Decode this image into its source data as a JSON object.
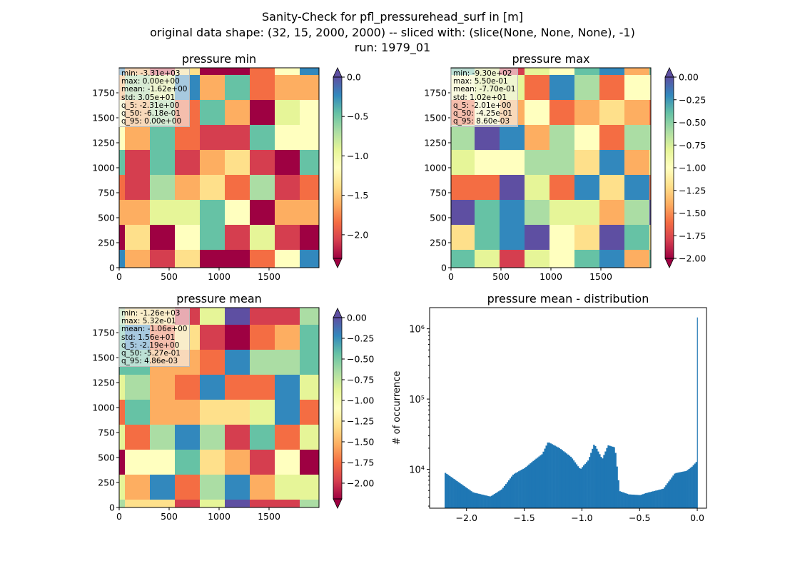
{
  "figure": {
    "title_lines": [
      "Sanity-Check for pfl_pressurehead_surf in [m]",
      "original data shape: (32, 15, 2000, 2000) -- sliced with: (slice(None, None, None), -1)",
      "run: 1979_01"
    ]
  },
  "colormap": {
    "name": "Spectral",
    "stops": [
      "#9e0142",
      "#d53e4f",
      "#f46d43",
      "#fdae61",
      "#fee08b",
      "#ffffbf",
      "#e6f598",
      "#abdda4",
      "#66c2a5",
      "#3288bd",
      "#5e4fa2"
    ]
  },
  "chart_data": [
    {
      "type": "heatmap",
      "title": "pressure min",
      "x_ticks": [
        "0",
        "500",
        "1000",
        "1500"
      ],
      "y_ticks": [
        "0",
        "250",
        "500",
        "750",
        "1000",
        "1250",
        "1500",
        "1750"
      ],
      "xlim": [
        0,
        2000
      ],
      "ylim": [
        0,
        2000
      ],
      "colorbar": {
        "range": [
          -2.3,
          0.0
        ],
        "ticks": [
          "0.0",
          "-0.5",
          "-1.0",
          "-1.5",
          "-2.0"
        ],
        "extend": "both"
      },
      "stats": [
        "min: -3.31e+03",
        "max: 0.00e+00",
        "mean: -1.62e+00",
        "std: 3.05e+01",
        "q_5: -2.31e+00",
        "q_50: -6.18e-01",
        "q_95: 0.00e+00"
      ]
    },
    {
      "type": "heatmap",
      "title": "pressure max",
      "x_ticks": [
        "0",
        "500",
        "1000",
        "1500"
      ],
      "y_ticks": [
        "0",
        "250",
        "500",
        "750",
        "1000",
        "1250",
        "1500",
        "1750"
      ],
      "xlim": [
        0,
        2000
      ],
      "ylim": [
        0,
        2000
      ],
      "colorbar": {
        "range": [
          -2.0,
          0.0
        ],
        "ticks": [
          "0.00",
          "-0.25",
          "-0.50",
          "-0.75",
          "-1.00",
          "-1.25",
          "-1.50",
          "-1.75",
          "-2.00"
        ],
        "extend": "both"
      },
      "stats": [
        "min: -9.30e+02",
        "max: 5.50e-01",
        "mean: -7.70e-01",
        "std: 1.02e+01",
        "q_5: -2.01e+00",
        "q_50: -4.25e-01",
        "q_95: 8.60e-03"
      ]
    },
    {
      "type": "heatmap",
      "title": "pressure mean",
      "x_ticks": [
        "0",
        "500",
        "1000",
        "1500"
      ],
      "y_ticks": [
        "0",
        "250",
        "500",
        "750",
        "1000",
        "1250",
        "1500",
        "1750"
      ],
      "xlim": [
        0,
        2000
      ],
      "ylim": [
        0,
        2000
      ],
      "colorbar": {
        "range": [
          -2.19,
          0.0
        ],
        "ticks": [
          "0.00",
          "-0.25",
          "-0.50",
          "-0.75",
          "-1.00",
          "-1.25",
          "-1.50",
          "-1.75",
          "-2.00"
        ],
        "extend": "both"
      },
      "stats": [
        "min: -1.26e+03",
        "max: 5.32e-01",
        "mean: -1.06e+00",
        "std: 1.56e+01",
        "q_5: -2.19e+00",
        "q_50: -5.27e-01",
        "q_95: 4.86e-03"
      ]
    },
    {
      "type": "bar",
      "title": "pressure mean - distribution",
      "ylabel": "# of occurrence",
      "xlabel": "",
      "yscale": "log",
      "xlim": [
        -2.32,
        0.08
      ],
      "ylim": [
        2800,
        2000000
      ],
      "x_ticks": [
        -2.0,
        -1.5,
        -1.0,
        -0.5,
        0.0
      ],
      "x_tick_labels": [
        "−2.0",
        "−1.5",
        "−1.0",
        "−0.5",
        "0.0"
      ],
      "y_ticks": [
        10000,
        100000,
        1000000
      ],
      "y_tick_labels": [
        "10⁴",
        "10⁵",
        "10⁶"
      ],
      "color": "#1f77b4",
      "x": [
        -2.19,
        -1.95,
        -1.8,
        -1.7,
        -1.6,
        -1.5,
        -1.42,
        -1.35,
        -1.3,
        -1.2,
        -1.1,
        -1.02,
        -0.95,
        -0.9,
        -0.83,
        -0.78,
        -0.72,
        -0.68,
        -0.6,
        -0.5,
        -0.45,
        -0.3,
        -0.2,
        -0.1,
        -0.05,
        -0.01,
        0.0
      ],
      "values": [
        8900,
        4700,
        4100,
        5200,
        8500,
        10500,
        13500,
        16500,
        24500,
        20000,
        15000,
        10000,
        13500,
        23000,
        14000,
        22000,
        20500,
        4900,
        4400,
        4300,
        4600,
        5300,
        8800,
        9500,
        11000,
        13000,
        1450000
      ]
    }
  ]
}
